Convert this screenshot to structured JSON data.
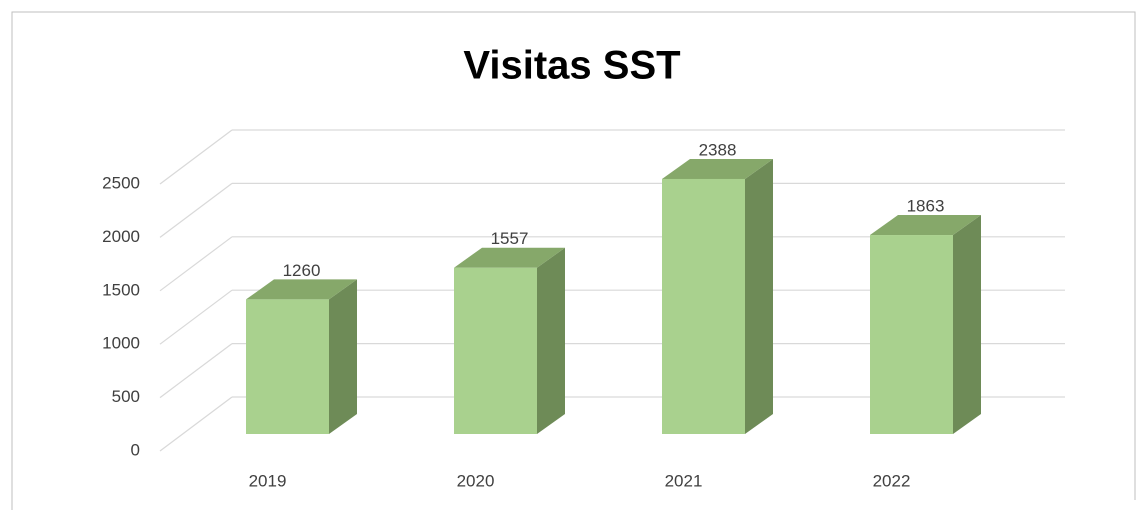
{
  "chart_data": {
    "type": "bar3d",
    "title": "Visitas SST",
    "categories": [
      "2019",
      "2020",
      "2021",
      "2022"
    ],
    "values": [
      1260,
      1557,
      2388,
      1863
    ],
    "color": "#a9d18e",
    "ylim": [
      0,
      2500
    ],
    "yticks": [
      0,
      500,
      1000,
      1500,
      2000,
      2500
    ],
    "grid": true
  }
}
